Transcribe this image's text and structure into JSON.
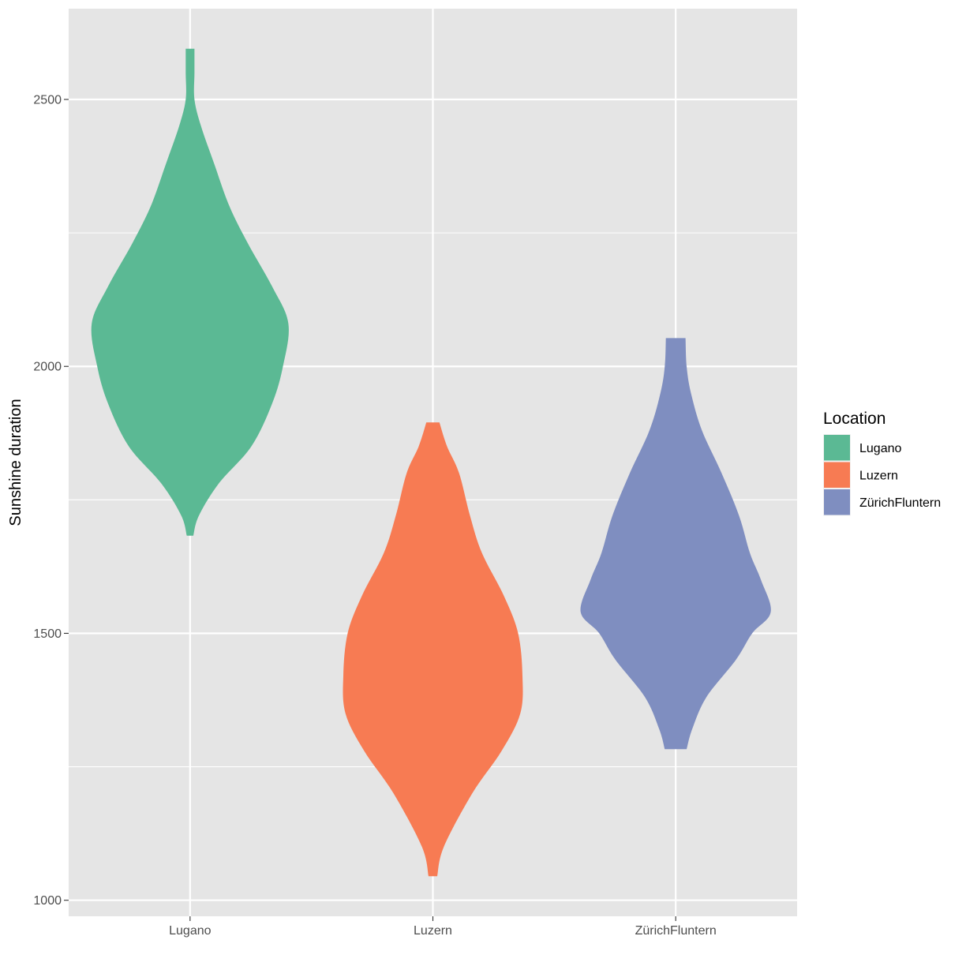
{
  "chart_data": {
    "type": "violin",
    "title": "",
    "xlabel": "",
    "ylabel": "Sunshine duration",
    "ylim": [
      970,
      2670
    ],
    "y_ticks": [
      1000,
      1500,
      2000,
      2500
    ],
    "y_tick_labels": [
      "1000",
      "1500",
      "2000",
      "2500"
    ],
    "grid": true,
    "categories": [
      "Lugano",
      "Luzern",
      "ZürichFluntern"
    ],
    "legend": {
      "title": "Location",
      "position": "right"
    },
    "series": [
      {
        "name": "Lugano",
        "color": "#5bb994",
        "min": 1683,
        "max": 2595,
        "density": [
          [
            1683,
            0.03
          ],
          [
            1720,
            0.08
          ],
          [
            1780,
            0.26
          ],
          [
            1850,
            0.56
          ],
          [
            1930,
            0.75
          ],
          [
            2000,
            0.85
          ],
          [
            2080,
            0.9
          ],
          [
            2150,
            0.75
          ],
          [
            2230,
            0.53
          ],
          [
            2300,
            0.36
          ],
          [
            2380,
            0.22
          ],
          [
            2450,
            0.1
          ],
          [
            2500,
            0.04
          ],
          [
            2550,
            0.04
          ],
          [
            2595,
            0.04
          ]
        ]
      },
      {
        "name": "Luzern",
        "color": "#f77b53",
        "min": 1045,
        "max": 1895,
        "density": [
          [
            1045,
            0.04
          ],
          [
            1100,
            0.1
          ],
          [
            1200,
            0.36
          ],
          [
            1280,
            0.63
          ],
          [
            1350,
            0.8
          ],
          [
            1420,
            0.82
          ],
          [
            1500,
            0.78
          ],
          [
            1570,
            0.65
          ],
          [
            1650,
            0.45
          ],
          [
            1720,
            0.34
          ],
          [
            1800,
            0.24
          ],
          [
            1850,
            0.13
          ],
          [
            1895,
            0.06
          ]
        ]
      },
      {
        "name": "ZürichFluntern",
        "color": "#7f8ec0",
        "min": 1283,
        "max": 2053,
        "density": [
          [
            1283,
            0.1
          ],
          [
            1320,
            0.15
          ],
          [
            1380,
            0.28
          ],
          [
            1450,
            0.55
          ],
          [
            1500,
            0.7
          ],
          [
            1540,
            0.87
          ],
          [
            1600,
            0.78
          ],
          [
            1650,
            0.68
          ],
          [
            1720,
            0.58
          ],
          [
            1800,
            0.42
          ],
          [
            1880,
            0.24
          ],
          [
            1950,
            0.14
          ],
          [
            2000,
            0.1
          ],
          [
            2053,
            0.09
          ]
        ]
      }
    ]
  },
  "colors": {
    "panel_background": "#e5e5e5",
    "grid": "#ffffff",
    "page_background": "#ffffff"
  }
}
